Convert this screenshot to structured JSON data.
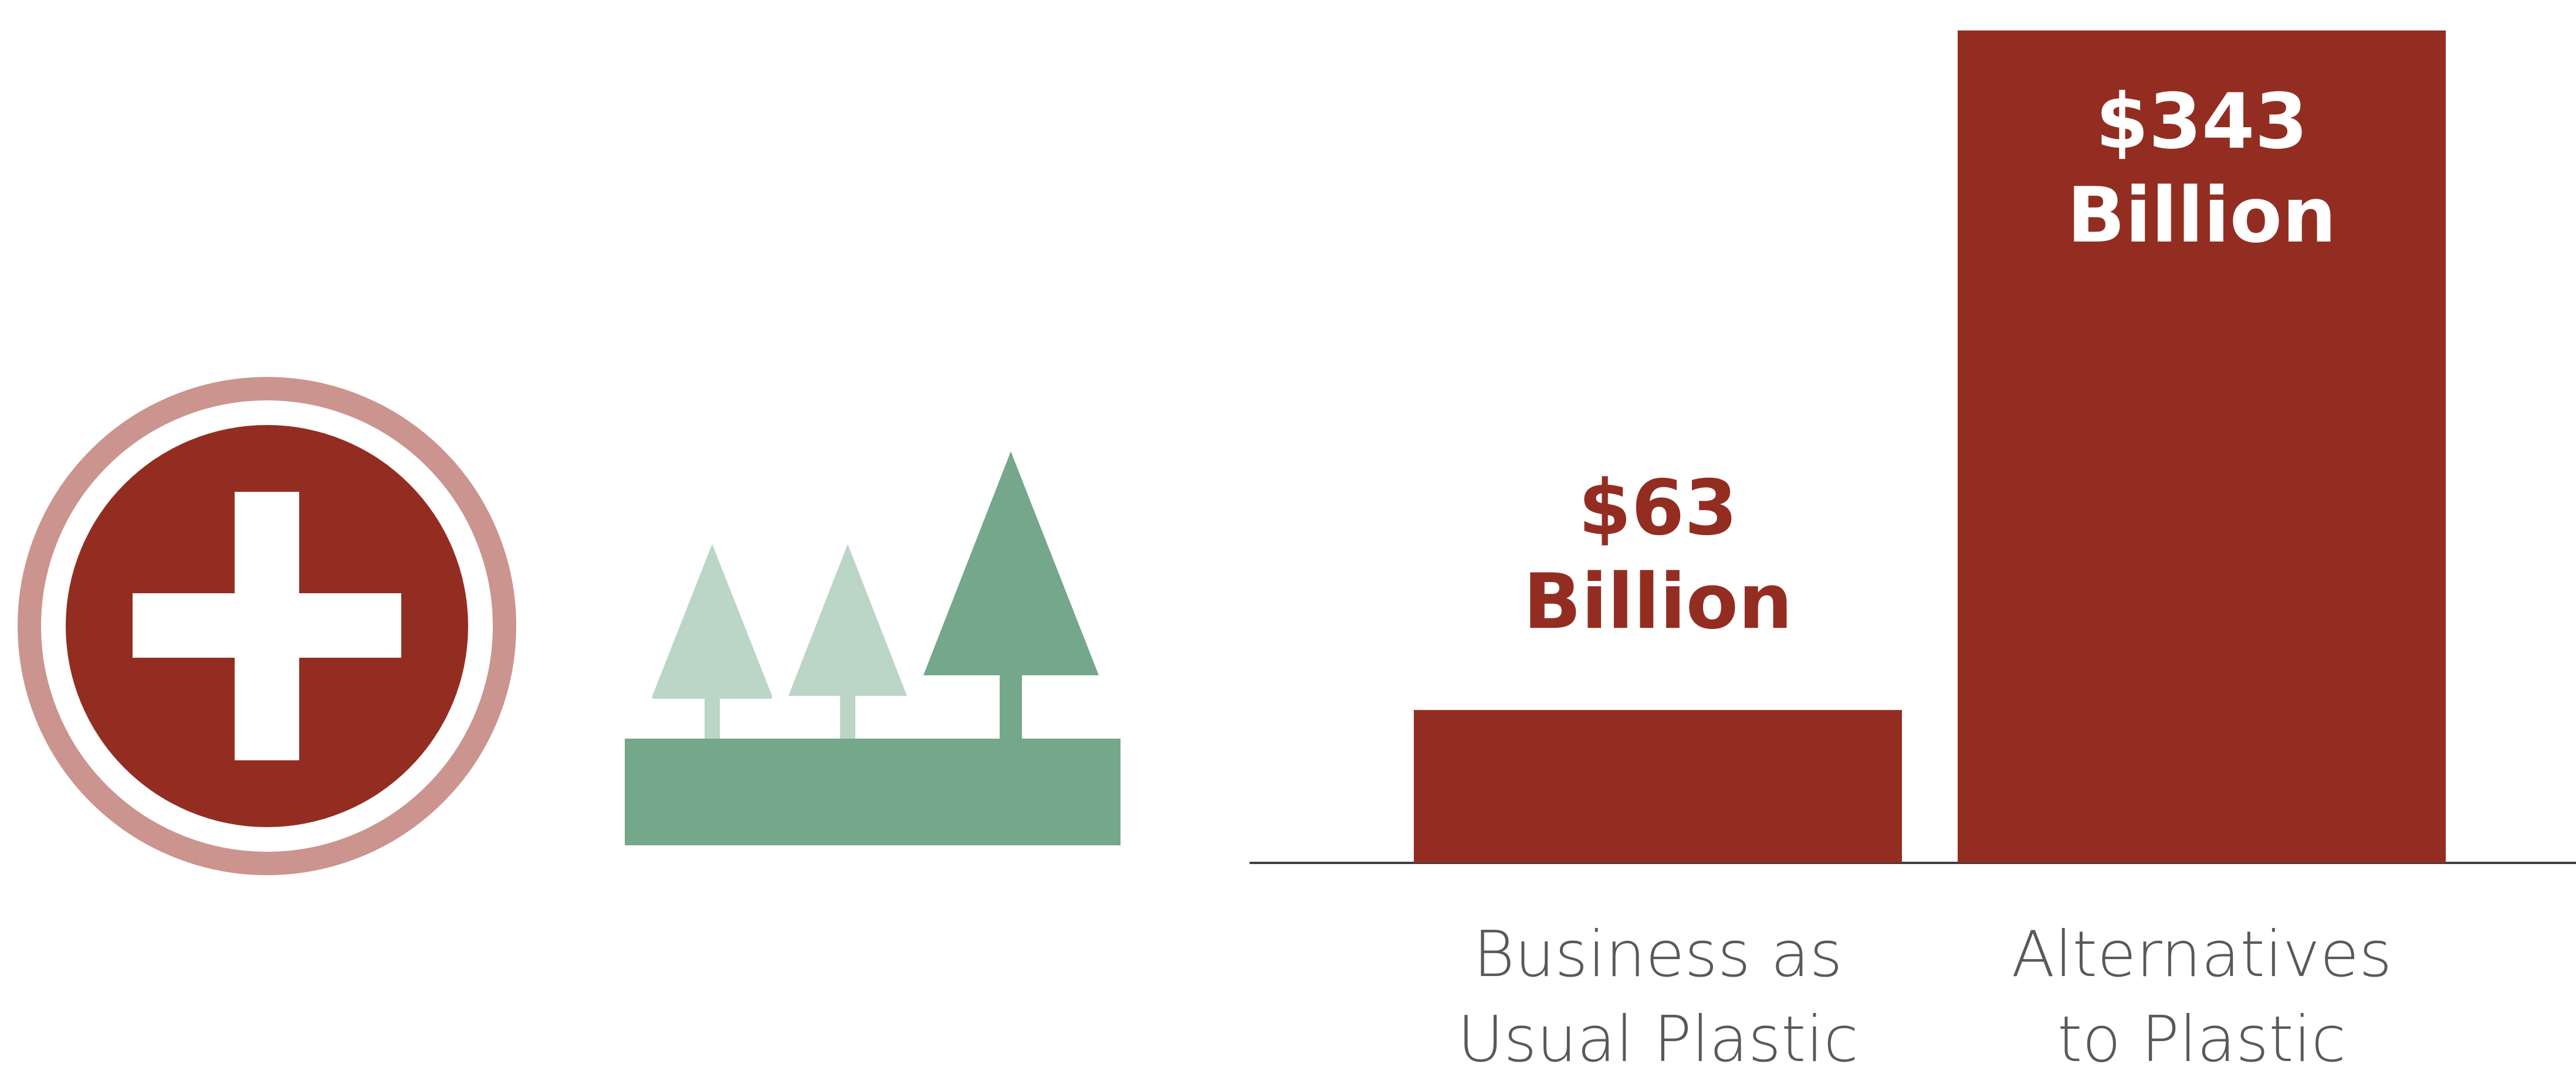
{
  "icons": {
    "health": "medical-cross-icon",
    "environment": "trees-icon"
  },
  "colors": {
    "bar": "#942d21",
    "ring": "#cc948f",
    "tree_dark": "#75a78a",
    "tree_light": "#bbd5c7",
    "axis": "#404040",
    "category_text": "#595959"
  },
  "chart_data": {
    "type": "bar",
    "categories": [
      "Business as Usual Plastic",
      "Alternatives to Plastic"
    ],
    "category_lines": [
      [
        "Business as",
        "Usual Plastic"
      ],
      [
        "Alternatives",
        "to Plastic"
      ]
    ],
    "values": [
      63,
      343
    ],
    "value_labels": [
      [
        "$63",
        "Billion"
      ],
      [
        "$343",
        "Billion"
      ]
    ],
    "unit": "Billion",
    "title": "",
    "xlabel": "",
    "ylabel": "",
    "ylim": [
      0,
      343
    ],
    "grid": false,
    "legend": "none"
  }
}
